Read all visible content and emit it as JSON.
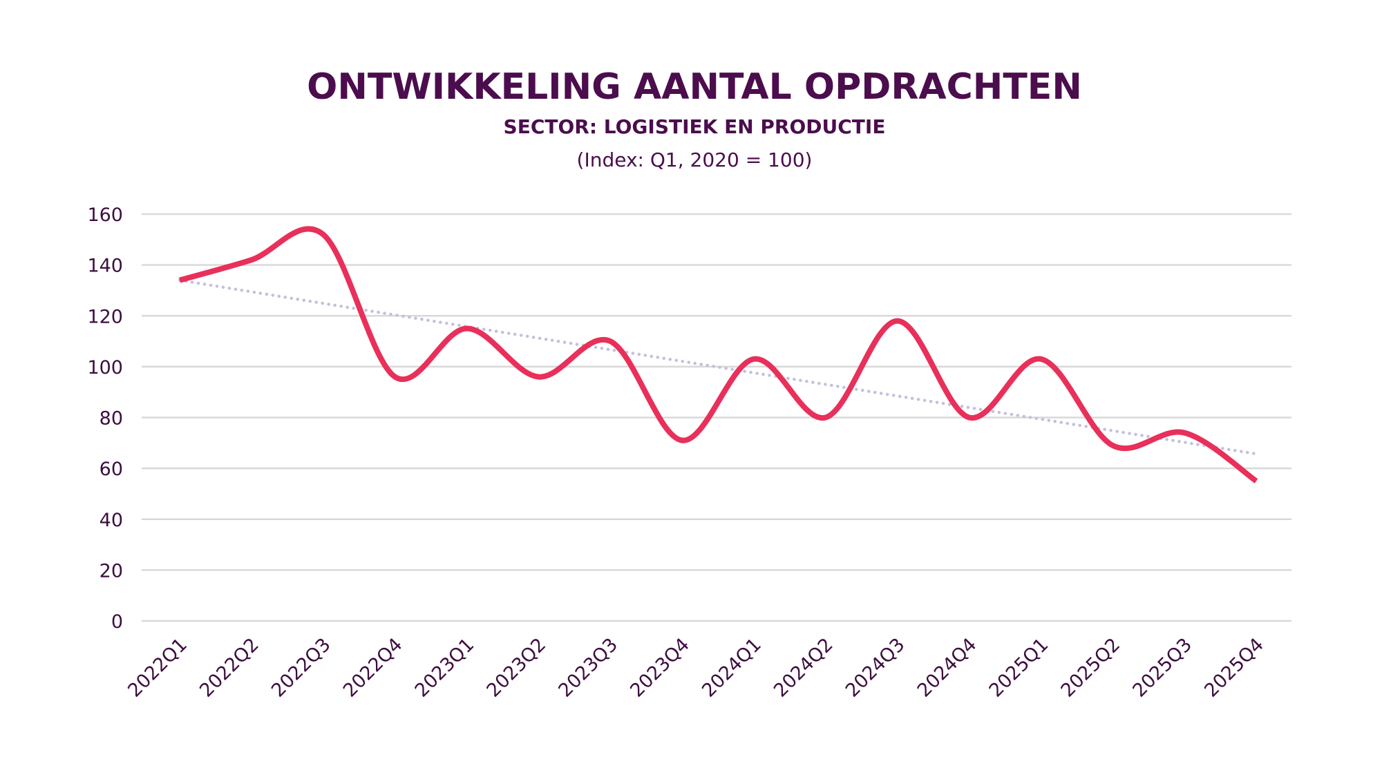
{
  "chart_data": {
    "type": "line",
    "title": "ONTWIKKELING AANTAL OPDRACHTEN",
    "subtitle": "SECTOR: LOGISTIEK EN PRODUCTIE",
    "note": "(Index: Q1, 2020 = 100)",
    "xlabel": "",
    "ylabel": "",
    "categories": [
      "2022Q1",
      "2022Q2",
      "2022Q3",
      "2022Q4",
      "2023Q1",
      "2023Q2",
      "2023Q3",
      "2023Q4",
      "2024Q1",
      "2024Q2",
      "2024Q3",
      "2024Q4",
      "2025Q1",
      "2025Q2",
      "2025Q3",
      "2025Q4"
    ],
    "series": [
      {
        "values": [
          134,
          142,
          152,
          96,
          115,
          96,
          110,
          71,
          103,
          80,
          118,
          80,
          103,
          69,
          74,
          55
        ],
        "color": "#e8305a",
        "smooth": true
      },
      {
        "kind": "linear-trendline",
        "values_start_end": [
          134,
          65.7
        ],
        "color": "#c3c0dd",
        "style": "dotted"
      }
    ],
    "ylim": [
      0,
      160
    ],
    "yticks": [
      "0",
      "20",
      "40",
      "60",
      "80",
      "100",
      "120",
      "140",
      "160"
    ],
    "grid": true,
    "legend": "none",
    "text_color": "#4b0d4d"
  }
}
